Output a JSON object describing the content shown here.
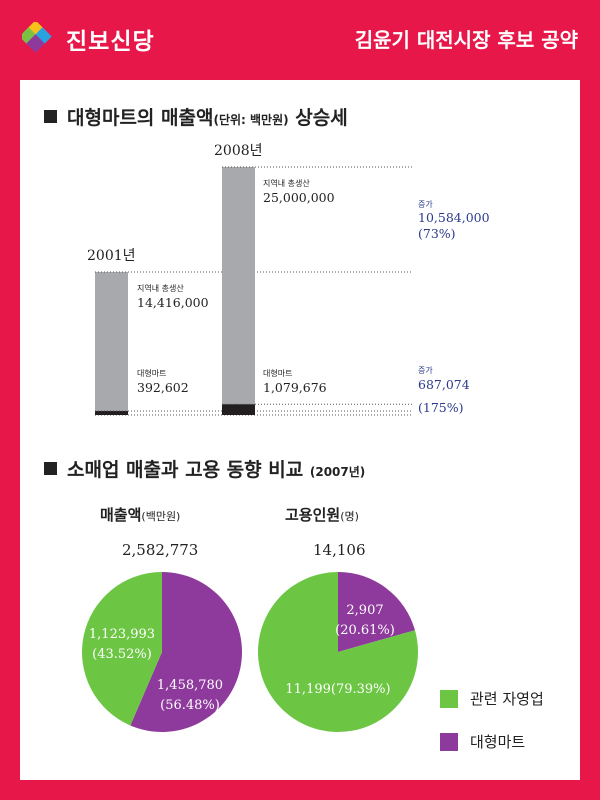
{
  "header": {
    "party": "진보신당",
    "pledge": "김윤기 대전시장 후보 공약"
  },
  "section1": {
    "title": "대형마트의 매출액",
    "unit": "(단위: 백만원)",
    "trend": "상승세"
  },
  "section2": {
    "title": "소매업 매출과 고용 동향 비교",
    "year": "(2007년)"
  },
  "colors": {
    "bg": "#e8174a",
    "bar": "#a8a9ad",
    "mart": "#231f20",
    "green": "#6cc644",
    "purple": "#8e3a9c",
    "increase": "#2b3a8f"
  },
  "chart_data": [
    {
      "type": "bar",
      "title": "대형마트의 매출액(단위: 백만원) 상승세",
      "categories": [
        "2001년",
        "2008년"
      ],
      "series": [
        {
          "name": "지역내 총생산",
          "labels": [
            "지역내 총생산",
            "지역내 총생산"
          ],
          "values": [
            14416000,
            25000000
          ],
          "display": [
            "14,416,000",
            "25,000,000"
          ]
        },
        {
          "name": "대형마트",
          "labels": [
            "대형마트",
            "대형마트"
          ],
          "values": [
            392602,
            1079676
          ],
          "display": [
            "392,602",
            "1,079,676"
          ]
        }
      ],
      "annotations": [
        {
          "label": "증가",
          "value": "10,584,000",
          "pct": "(73%)"
        },
        {
          "label": "증가",
          "value": "687,074",
          "pct": "(175%)"
        }
      ]
    },
    {
      "type": "pie",
      "title": "매출액",
      "unit": "(백만원)",
      "total": "2,582,773",
      "slices": [
        {
          "name": "관련 자영업",
          "value": 1123993,
          "display": "1,123,993",
          "pct": "(43.52%)",
          "color": "#6cc644"
        },
        {
          "name": "대형마트",
          "value": 1458780,
          "display": "1,458,780",
          "pct": "(56.48%)",
          "color": "#8e3a9c"
        }
      ]
    },
    {
      "type": "pie",
      "title": "고용인원",
      "unit": "(명)",
      "total": "14,106",
      "slices": [
        {
          "name": "관련 자영업",
          "value": 11199,
          "display": "11,199(79.39%)",
          "color": "#6cc644"
        },
        {
          "name": "대형마트",
          "value": 2907,
          "display": "2,907",
          "pct": "(20.61%)",
          "color": "#8e3a9c"
        }
      ]
    }
  ],
  "legend": [
    {
      "label": "관련 자영업",
      "color": "#6cc644"
    },
    {
      "label": "대형마트",
      "color": "#8e3a9c"
    }
  ]
}
